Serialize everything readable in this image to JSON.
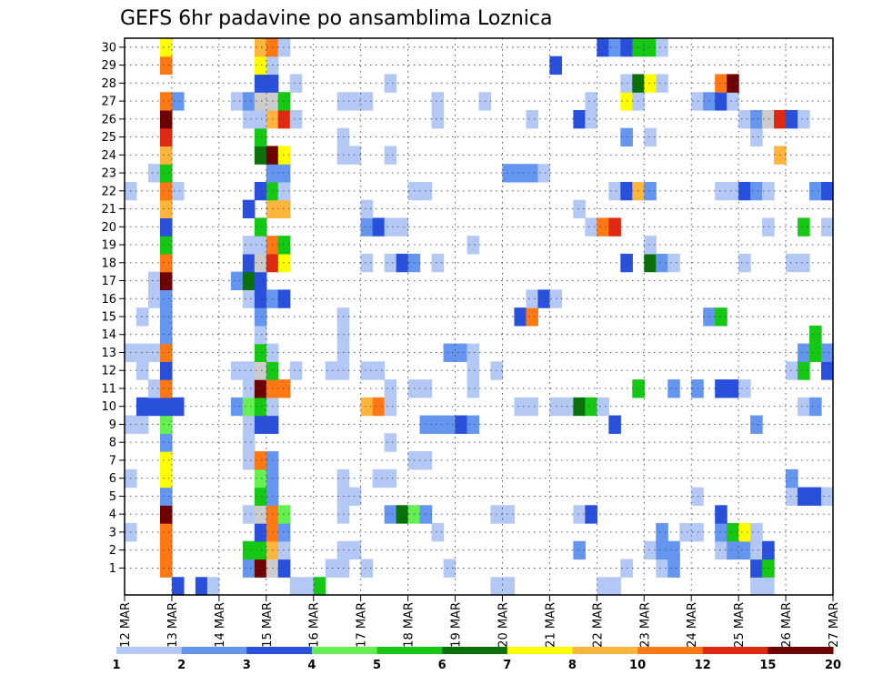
{
  "chart_data": {
    "type": "heatmap",
    "title": "GEFS 6hr padavine po ansamblima Loznica",
    "xlabel": "",
    "ylabel": "",
    "x_ticks": [
      "12 MAR",
      "13 MAR",
      "14 MAR",
      "15 MAR",
      "16 MAR",
      "17 MAR",
      "18 MAR",
      "19 MAR",
      "20 MAR",
      "21 MAR",
      "22 MAR",
      "23 MAR",
      "24 MAR",
      "25 MAR",
      "26 MAR",
      "27 MAR"
    ],
    "y_ticks": [
      1,
      2,
      3,
      4,
      5,
      6,
      7,
      8,
      9,
      10,
      11,
      12,
      13,
      14,
      15,
      16,
      17,
      18,
      19,
      20,
      21,
      22,
      23,
      24,
      25,
      26,
      27,
      28,
      29,
      30
    ],
    "xlim": [
      0,
      60
    ],
    "ylim": [
      0,
      30
    ],
    "grid": true,
    "colorbar": {
      "placement": "bottom",
      "tick_labels": [
        "1",
        "2",
        "3",
        "4",
        "5",
        "6",
        "7",
        "8",
        "10",
        "12",
        "15",
        "20"
      ],
      "colors": [
        "#b4c8f5",
        "#6496f0",
        "#2850dc",
        "#64f050",
        "#14c814",
        "#0a700a",
        "#ffff00",
        "#ffb43c",
        "#ff7814",
        "#e12810",
        "#6e0000"
      ]
    },
    "members": {
      "0": [
        [
          4,
          "3"
        ],
        [
          6,
          "3"
        ],
        [
          7,
          "1"
        ],
        [
          14,
          "1"
        ],
        [
          15,
          "1"
        ],
        [
          16,
          "5"
        ],
        [
          31,
          "1"
        ],
        [
          32,
          "1"
        ],
        [
          40,
          "1"
        ],
        [
          41,
          "1"
        ],
        [
          53,
          "1"
        ],
        [
          54,
          "1"
        ]
      ],
      "1": [
        [
          3,
          "10"
        ],
        [
          10,
          "2"
        ],
        [
          11,
          "15"
        ],
        [
          12,
          "20"
        ],
        [
          13,
          "3"
        ],
        [
          17,
          "1"
        ],
        [
          18,
          "1"
        ],
        [
          20,
          "1"
        ],
        [
          27,
          "1"
        ],
        [
          42,
          "1"
        ],
        [
          45,
          "1"
        ],
        [
          46,
          "2"
        ],
        [
          53,
          "3"
        ],
        [
          54,
          "5"
        ]
      ],
      "2": [
        [
          3,
          "10"
        ],
        [
          10,
          "5"
        ],
        [
          11,
          "5"
        ],
        [
          12,
          "8"
        ],
        [
          13,
          "1"
        ],
        [
          18,
          "1"
        ],
        [
          19,
          "1"
        ],
        [
          38,
          "2"
        ],
        [
          44,
          "1"
        ],
        [
          45,
          "2"
        ],
        [
          46,
          "2"
        ],
        [
          50,
          "1"
        ],
        [
          51,
          "2"
        ],
        [
          52,
          "2"
        ],
        [
          53,
          "1"
        ],
        [
          54,
          "3"
        ]
      ],
      "3": [
        [
          0,
          "1"
        ],
        [
          3,
          "10"
        ],
        [
          11,
          "3"
        ],
        [
          12,
          "10"
        ],
        [
          13,
          "2"
        ],
        [
          26,
          "1"
        ],
        [
          45,
          "2"
        ],
        [
          47,
          "1"
        ],
        [
          48,
          "1"
        ],
        [
          50,
          "2"
        ],
        [
          51,
          "5"
        ],
        [
          52,
          "7"
        ],
        [
          53,
          "1"
        ]
      ],
      "4": [
        [
          3,
          "15"
        ],
        [
          10,
          "1"
        ],
        [
          11,
          "20"
        ],
        [
          12,
          "10"
        ],
        [
          13,
          "4"
        ],
        [
          18,
          "1"
        ],
        [
          22,
          "2"
        ],
        [
          23,
          "6"
        ],
        [
          24,
          "4"
        ],
        [
          25,
          "2"
        ],
        [
          31,
          "1"
        ],
        [
          32,
          "1"
        ],
        [
          38,
          "1"
        ],
        [
          39,
          "3"
        ],
        [
          50,
          "3"
        ]
      ],
      "5": [
        [
          3,
          "2"
        ],
        [
          11,
          "5"
        ],
        [
          12,
          "2"
        ],
        [
          18,
          "1"
        ],
        [
          19,
          "1"
        ],
        [
          48,
          "1"
        ],
        [
          56,
          "1"
        ],
        [
          57,
          "3"
        ],
        [
          58,
          "3"
        ],
        [
          59,
          "1"
        ]
      ],
      "6": [
        [
          0,
          "1"
        ],
        [
          3,
          "7"
        ],
        [
          11,
          "4"
        ],
        [
          12,
          "2"
        ],
        [
          18,
          "1"
        ],
        [
          21,
          "1"
        ],
        [
          22,
          "1"
        ],
        [
          56,
          "2"
        ]
      ],
      "7": [
        [
          3,
          "7"
        ],
        [
          10,
          "1"
        ],
        [
          11,
          "10"
        ],
        [
          12,
          "2"
        ],
        [
          24,
          "1"
        ],
        [
          25,
          "1"
        ]
      ],
      "8": [
        [
          3,
          "2"
        ],
        [
          10,
          "1"
        ],
        [
          22,
          "1"
        ]
      ],
      "9": [
        [
          0,
          "1"
        ],
        [
          1,
          "1"
        ],
        [
          3,
          "4"
        ],
        [
          10,
          "1"
        ],
        [
          11,
          "3"
        ],
        [
          12,
          "3"
        ],
        [
          25,
          "2"
        ],
        [
          26,
          "2"
        ],
        [
          27,
          "2"
        ],
        [
          28,
          "3"
        ],
        [
          29,
          "2"
        ],
        [
          41,
          "3"
        ],
        [
          53,
          "2"
        ]
      ],
      "10": [
        [
          1,
          "3"
        ],
        [
          2,
          "3"
        ],
        [
          3,
          "3"
        ],
        [
          4,
          "3"
        ],
        [
          9,
          "2"
        ],
        [
          10,
          "4"
        ],
        [
          11,
          "5"
        ],
        [
          12,
          "1"
        ],
        [
          20,
          "8"
        ],
        [
          21,
          "10"
        ],
        [
          22,
          "1"
        ],
        [
          33,
          "1"
        ],
        [
          34,
          "1"
        ],
        [
          36,
          "1"
        ],
        [
          37,
          "1"
        ],
        [
          38,
          "6"
        ],
        [
          39,
          "5"
        ],
        [
          40,
          "1"
        ],
        [
          57,
          "1"
        ],
        [
          58,
          "2"
        ]
      ],
      "11": [
        [
          2,
          "1"
        ],
        [
          3,
          "10"
        ],
        [
          10,
          "1"
        ],
        [
          11,
          "15"
        ],
        [
          12,
          "10"
        ],
        [
          13,
          "10"
        ],
        [
          22,
          "1"
        ],
        [
          24,
          "1"
        ],
        [
          25,
          "1"
        ],
        [
          29,
          "1"
        ],
        [
          43,
          "5"
        ],
        [
          46,
          "2"
        ],
        [
          48,
          "2"
        ],
        [
          50,
          "3"
        ],
        [
          51,
          "3"
        ],
        [
          52,
          "1"
        ]
      ],
      "12": [
        [
          1,
          "1"
        ],
        [
          3,
          "3"
        ],
        [
          9,
          "1"
        ],
        [
          10,
          "1"
        ],
        [
          11,
          "20"
        ],
        [
          12,
          "5"
        ],
        [
          14,
          "1"
        ],
        [
          17,
          "1"
        ],
        [
          18,
          "1"
        ],
        [
          20,
          "1"
        ],
        [
          21,
          "1"
        ],
        [
          29,
          "1"
        ],
        [
          31,
          "1"
        ],
        [
          56,
          "1"
        ],
        [
          57,
          "5"
        ],
        [
          59,
          "3"
        ]
      ],
      "13": [
        [
          0,
          "1"
        ],
        [
          1,
          "1"
        ],
        [
          2,
          "1"
        ],
        [
          3,
          "10"
        ],
        [
          11,
          "5"
        ],
        [
          12,
          "1"
        ],
        [
          18,
          "1"
        ],
        [
          27,
          "2"
        ],
        [
          28,
          "2"
        ],
        [
          29,
          "1"
        ],
        [
          57,
          "2"
        ],
        [
          58,
          "5"
        ],
        [
          59,
          "2"
        ]
      ],
      "14": [
        [
          3,
          "2"
        ],
        [
          11,
          "1"
        ],
        [
          18,
          "1"
        ],
        [
          58,
          "5"
        ]
      ],
      "15": [
        [
          1,
          "1"
        ],
        [
          3,
          "2"
        ],
        [
          11,
          "2"
        ],
        [
          18,
          "1"
        ],
        [
          33,
          "3"
        ],
        [
          34,
          "10"
        ],
        [
          49,
          "2"
        ],
        [
          50,
          "5"
        ]
      ],
      "16": [
        [
          2,
          "1"
        ],
        [
          3,
          "2"
        ],
        [
          10,
          "1"
        ],
        [
          11,
          "3"
        ],
        [
          12,
          "2"
        ],
        [
          13,
          "3"
        ],
        [
          34,
          "1"
        ],
        [
          35,
          "3"
        ],
        [
          36,
          "1"
        ]
      ],
      "17": [
        [
          2,
          "1"
        ],
        [
          3,
          "15"
        ],
        [
          9,
          "2"
        ],
        [
          10,
          "6"
        ],
        [
          11,
          "3"
        ]
      ],
      "18": [
        [
          3,
          "10"
        ],
        [
          10,
          "3"
        ],
        [
          11,
          "20"
        ],
        [
          12,
          "12"
        ],
        [
          13,
          "7"
        ],
        [
          20,
          "1"
        ],
        [
          22,
          "1"
        ],
        [
          23,
          "3"
        ],
        [
          24,
          "2"
        ],
        [
          26,
          "1"
        ],
        [
          42,
          "3"
        ],
        [
          44,
          "6"
        ],
        [
          45,
          "2"
        ],
        [
          46,
          "1"
        ],
        [
          52,
          "1"
        ],
        [
          56,
          "1"
        ],
        [
          57,
          "1"
        ]
      ],
      "19": [
        [
          3,
          "5"
        ],
        [
          10,
          "1"
        ],
        [
          11,
          "1"
        ],
        [
          12,
          "10"
        ],
        [
          13,
          "5"
        ],
        [
          29,
          "1"
        ],
        [
          44,
          "1"
        ]
      ],
      "20": [
        [
          3,
          "3"
        ],
        [
          11,
          "5"
        ],
        [
          20,
          "2"
        ],
        [
          21,
          "3"
        ],
        [
          22,
          "1"
        ],
        [
          23,
          "1"
        ],
        [
          39,
          "1"
        ],
        [
          40,
          "10"
        ],
        [
          41,
          "12"
        ],
        [
          54,
          "1"
        ],
        [
          57,
          "5"
        ],
        [
          59,
          "1"
        ]
      ],
      "21": [
        [
          3,
          "8"
        ],
        [
          10,
          "3"
        ],
        [
          12,
          "8"
        ],
        [
          13,
          "8"
        ],
        [
          20,
          "1"
        ],
        [
          38,
          "1"
        ]
      ],
      "22": [
        [
          0,
          "1"
        ],
        [
          3,
          "10"
        ],
        [
          4,
          "1"
        ],
        [
          11,
          "3"
        ],
        [
          12,
          "5"
        ],
        [
          13,
          "1"
        ],
        [
          24,
          "1"
        ],
        [
          25,
          "1"
        ],
        [
          41,
          "1"
        ],
        [
          42,
          "3"
        ],
        [
          43,
          "8"
        ],
        [
          44,
          "2"
        ],
        [
          50,
          "1"
        ],
        [
          51,
          "1"
        ],
        [
          52,
          "3"
        ],
        [
          53,
          "2"
        ],
        [
          54,
          "1"
        ],
        [
          58,
          "2"
        ],
        [
          59,
          "3"
        ]
      ],
      "23": [
        [
          2,
          "1"
        ],
        [
          3,
          "5"
        ],
        [
          12,
          "2"
        ],
        [
          13,
          "2"
        ],
        [
          32,
          "2"
        ],
        [
          33,
          "2"
        ],
        [
          34,
          "2"
        ],
        [
          35,
          "1"
        ]
      ],
      "24": [
        [
          3,
          "8"
        ],
        [
          11,
          "6"
        ],
        [
          12,
          "15"
        ],
        [
          13,
          "7"
        ],
        [
          18,
          "1"
        ],
        [
          19,
          "1"
        ],
        [
          22,
          "1"
        ],
        [
          55,
          "8"
        ]
      ],
      "25": [
        [
          3,
          "12"
        ],
        [
          11,
          "5"
        ],
        [
          18,
          "1"
        ],
        [
          42,
          "2"
        ],
        [
          44,
          "1"
        ],
        [
          53,
          "1"
        ]
      ],
      "26": [
        [
          3,
          "15"
        ],
        [
          10,
          "1"
        ],
        [
          11,
          "1"
        ],
        [
          12,
          "8"
        ],
        [
          13,
          "12"
        ],
        [
          14,
          "1"
        ],
        [
          26,
          "1"
        ],
        [
          34,
          "1"
        ],
        [
          38,
          "3"
        ],
        [
          39,
          "1"
        ],
        [
          52,
          "1"
        ],
        [
          53,
          "2"
        ],
        [
          54,
          "20"
        ],
        [
          55,
          "12"
        ],
        [
          56,
          "3"
        ],
        [
          57,
          "1"
        ]
      ],
      "27": [
        [
          3,
          "10"
        ],
        [
          4,
          "2"
        ],
        [
          9,
          "1"
        ],
        [
          10,
          "2"
        ],
        [
          11,
          "20"
        ],
        [
          12,
          "20"
        ],
        [
          13,
          "5"
        ],
        [
          18,
          "1"
        ],
        [
          19,
          "1"
        ],
        [
          20,
          "1"
        ],
        [
          26,
          "1"
        ],
        [
          30,
          "1"
        ],
        [
          39,
          "1"
        ],
        [
          42,
          "7"
        ],
        [
          43,
          "1"
        ],
        [
          48,
          "1"
        ],
        [
          49,
          "2"
        ],
        [
          50,
          "3"
        ],
        [
          51,
          "1"
        ]
      ],
      "28": [
        [
          11,
          "3"
        ],
        [
          12,
          "3"
        ],
        [
          14,
          "1"
        ],
        [
          22,
          "1"
        ],
        [
          42,
          "1"
        ],
        [
          43,
          "6"
        ],
        [
          44,
          "7"
        ],
        [
          45,
          "1"
        ],
        [
          50,
          "10"
        ],
        [
          51,
          "15"
        ]
      ],
      "29": [
        [
          3,
          "10"
        ],
        [
          11,
          "7"
        ],
        [
          12,
          "1"
        ],
        [
          36,
          "3"
        ]
      ],
      "30": [
        [
          3,
          "7"
        ],
        [
          11,
          "8"
        ],
        [
          12,
          "10"
        ],
        [
          13,
          "1"
        ],
        [
          40,
          "3"
        ],
        [
          41,
          "2"
        ],
        [
          42,
          "3"
        ],
        [
          43,
          "5"
        ],
        [
          44,
          "5"
        ],
        [
          45,
          "1"
        ]
      ]
    }
  }
}
